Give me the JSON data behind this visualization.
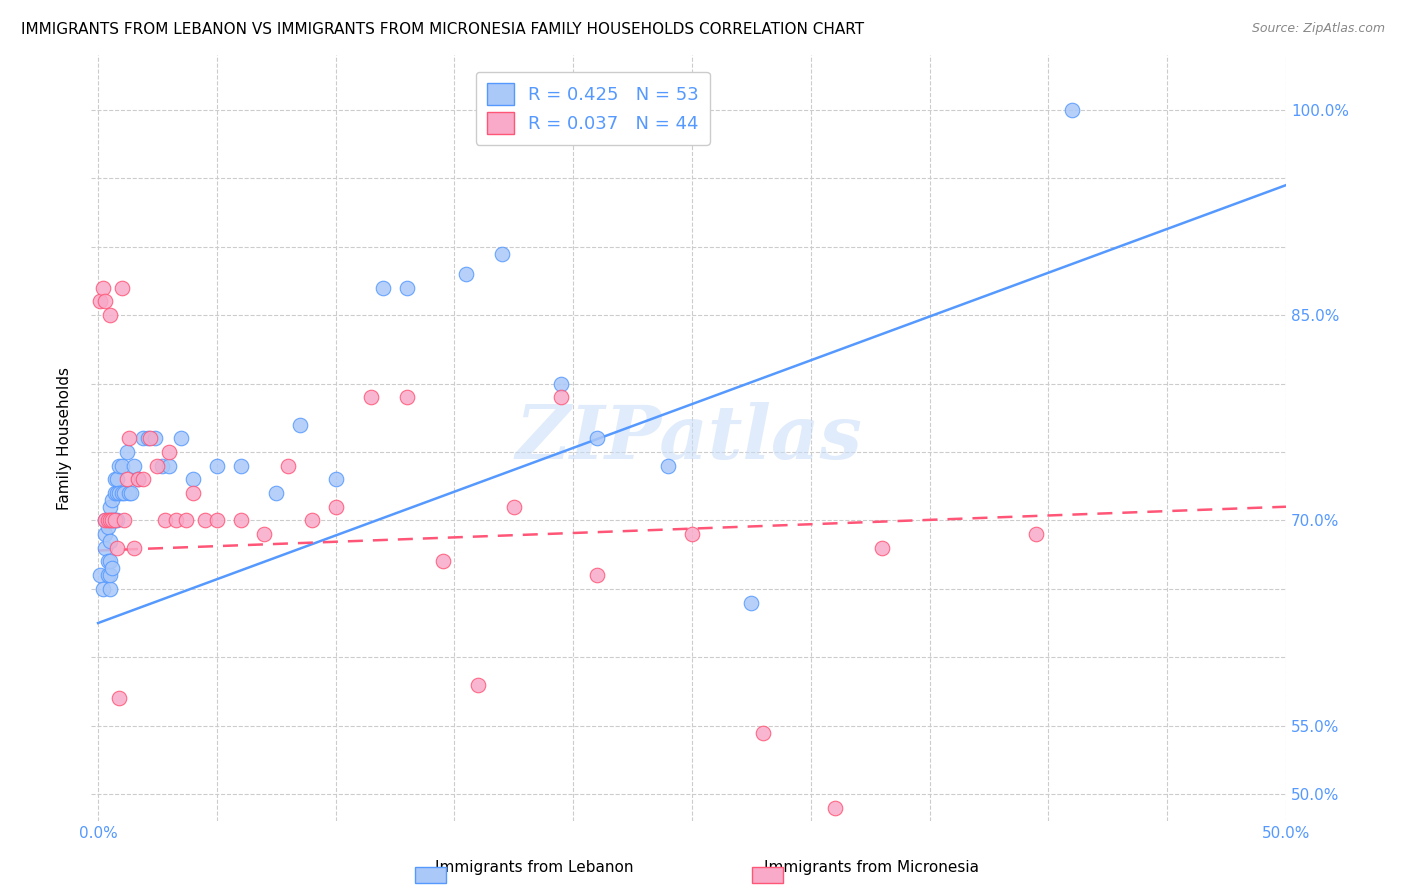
{
  "title": "IMMIGRANTS FROM LEBANON VS IMMIGRANTS FROM MICRONESIA FAMILY HOUSEHOLDS CORRELATION CHART",
  "source": "Source: ZipAtlas.com",
  "ylabel": "Family Households",
  "ylim": [
    0.48,
    1.04
  ],
  "xlim": [
    -0.003,
    0.5
  ],
  "legend_r1": "0.425",
  "legend_n1": "53",
  "legend_r2": "0.037",
  "legend_n2": "44",
  "color_lebanon": "#aac8f8",
  "color_micronesia": "#f8aac8",
  "color_lebanon_line": "#5599ff",
  "color_micronesia_line": "#ff5577",
  "watermark": "ZIPatlas",
  "lebanon_line_x": [
    0.0,
    0.5
  ],
  "lebanon_line_y": [
    0.625,
    0.945
  ],
  "micronesia_line_x": [
    0.0,
    0.5
  ],
  "micronesia_line_y": [
    0.678,
    0.71
  ],
  "lebanon_x": [
    0.001,
    0.002,
    0.003,
    0.003,
    0.003,
    0.004,
    0.004,
    0.004,
    0.005,
    0.005,
    0.005,
    0.005,
    0.005,
    0.006,
    0.006,
    0.006,
    0.007,
    0.007,
    0.007,
    0.008,
    0.008,
    0.008,
    0.009,
    0.009,
    0.01,
    0.01,
    0.011,
    0.012,
    0.013,
    0.014,
    0.015,
    0.017,
    0.019,
    0.021,
    0.024,
    0.027,
    0.03,
    0.035,
    0.04,
    0.05,
    0.06,
    0.075,
    0.085,
    0.1,
    0.12,
    0.13,
    0.155,
    0.17,
    0.195,
    0.21,
    0.24,
    0.275,
    0.41
  ],
  "lebanon_y": [
    0.66,
    0.65,
    0.68,
    0.69,
    0.7,
    0.66,
    0.67,
    0.695,
    0.65,
    0.66,
    0.67,
    0.685,
    0.71,
    0.665,
    0.7,
    0.715,
    0.7,
    0.72,
    0.73,
    0.7,
    0.72,
    0.73,
    0.72,
    0.74,
    0.72,
    0.74,
    0.72,
    0.75,
    0.72,
    0.72,
    0.74,
    0.73,
    0.76,
    0.76,
    0.76,
    0.74,
    0.74,
    0.76,
    0.73,
    0.74,
    0.74,
    0.72,
    0.77,
    0.73,
    0.87,
    0.87,
    0.88,
    0.895,
    0.8,
    0.76,
    0.74,
    0.64,
    1.0
  ],
  "micronesia_x": [
    0.001,
    0.002,
    0.003,
    0.003,
    0.004,
    0.005,
    0.005,
    0.006,
    0.007,
    0.008,
    0.009,
    0.01,
    0.011,
    0.012,
    0.013,
    0.015,
    0.017,
    0.019,
    0.022,
    0.025,
    0.028,
    0.03,
    0.033,
    0.037,
    0.04,
    0.045,
    0.05,
    0.06,
    0.07,
    0.08,
    0.09,
    0.1,
    0.115,
    0.13,
    0.145,
    0.16,
    0.175,
    0.195,
    0.21,
    0.25,
    0.31,
    0.395,
    0.28,
    0.33
  ],
  "micronesia_y": [
    0.86,
    0.87,
    0.86,
    0.7,
    0.7,
    0.85,
    0.7,
    0.7,
    0.7,
    0.68,
    0.57,
    0.87,
    0.7,
    0.73,
    0.76,
    0.68,
    0.73,
    0.73,
    0.76,
    0.74,
    0.7,
    0.75,
    0.7,
    0.7,
    0.72,
    0.7,
    0.7,
    0.7,
    0.69,
    0.74,
    0.7,
    0.71,
    0.79,
    0.79,
    0.67,
    0.58,
    0.71,
    0.79,
    0.66,
    0.69,
    0.49,
    0.69,
    0.545,
    0.68
  ]
}
